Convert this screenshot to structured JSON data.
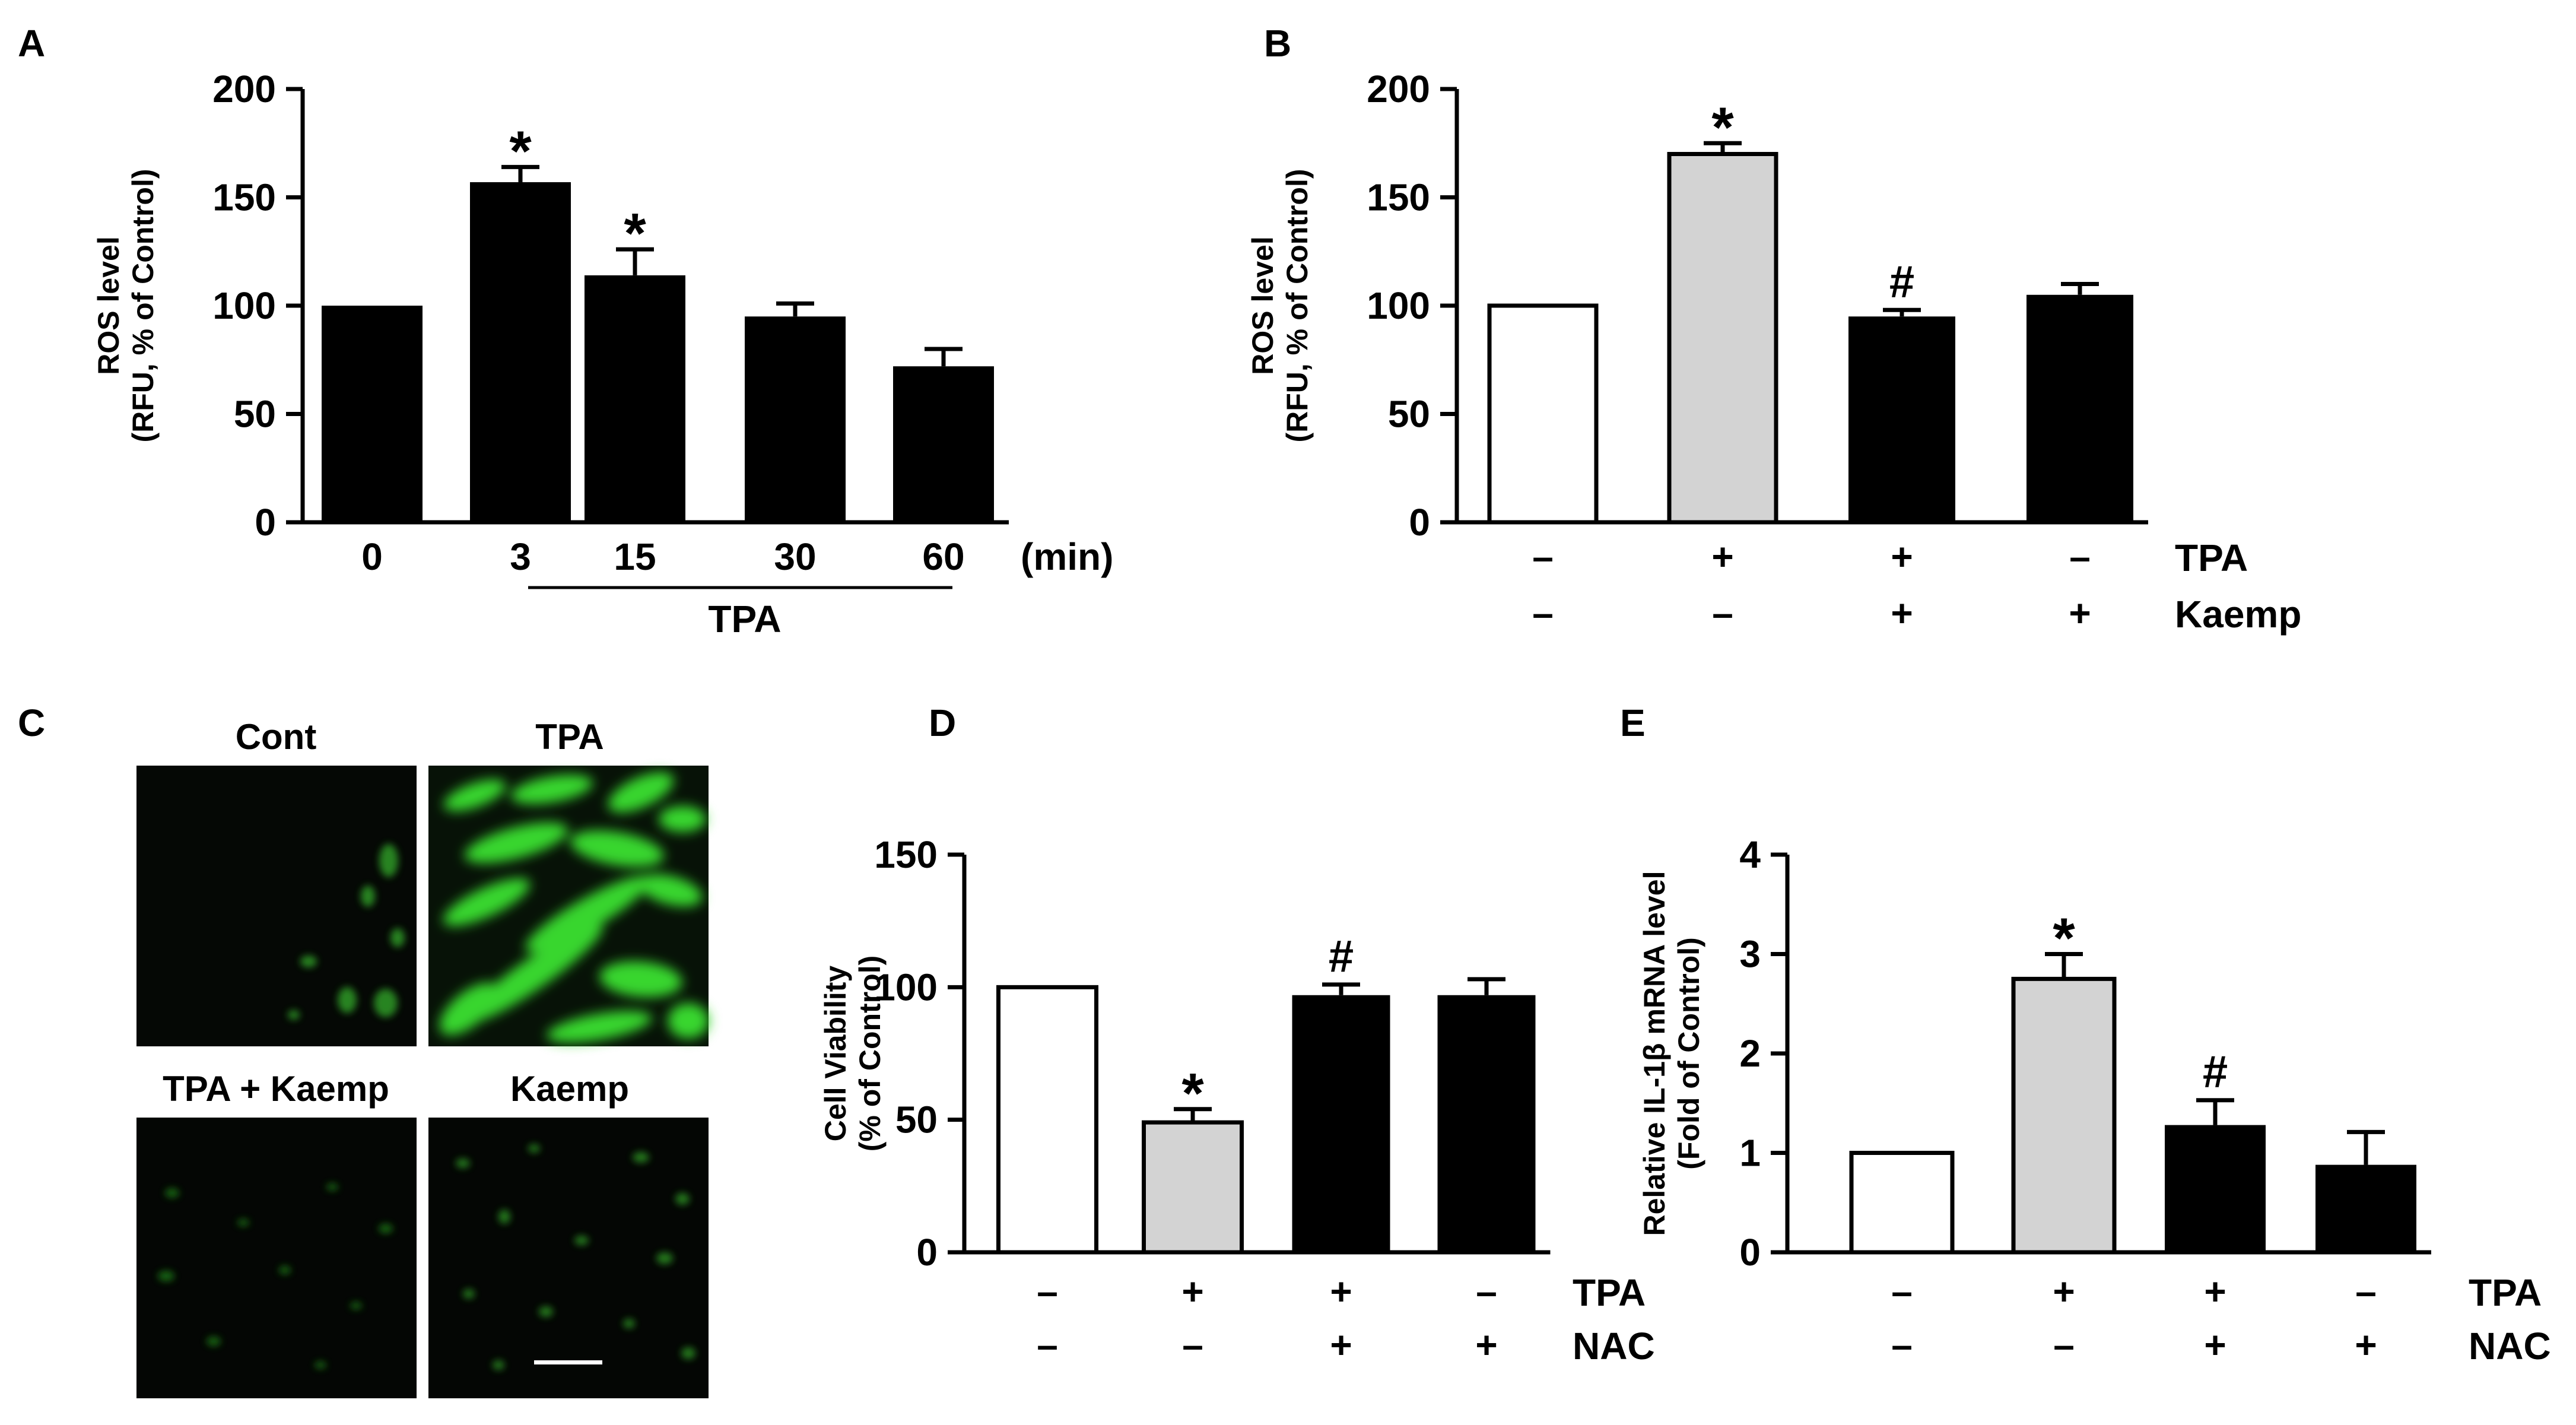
{
  "panels": {
    "A": {
      "letter": "A"
    },
    "B": {
      "letter": "B"
    },
    "C": {
      "letter": "C",
      "images": [
        {
          "label": "Cont",
          "intensity": "low"
        },
        {
          "label": "TPA",
          "intensity": "high"
        },
        {
          "label": "TPA + Kaemp",
          "intensity": "low"
        },
        {
          "label": "Kaemp",
          "intensity": "low"
        }
      ]
    },
    "D": {
      "letter": "D"
    },
    "E": {
      "letter": "E"
    }
  },
  "colors": {
    "black": "#000000",
    "gray": "#d3d3d3",
    "white": "#ffffff",
    "fluor": "#39d62e",
    "micro_bg": "#050805"
  },
  "chart_data": [
    {
      "panel": "A",
      "type": "bar",
      "ylabel": [
        "ROS level",
        "(RFU, % of Control)"
      ],
      "ylim": [
        0,
        200
      ],
      "yticks": [
        0,
        50,
        100,
        150,
        200
      ],
      "categories": [
        "0",
        "3",
        "15",
        "30",
        "60"
      ],
      "unit_label": "(min)",
      "group_label": "TPA",
      "values": [
        100,
        157,
        114,
        95,
        72
      ],
      "errors": [
        0,
        7,
        12,
        6,
        8
      ],
      "fills": [
        "black",
        "black",
        "black",
        "black",
        "black"
      ],
      "annotations": [
        "",
        "*",
        "*",
        "",
        ""
      ]
    },
    {
      "panel": "B",
      "type": "bar",
      "ylabel": [
        "ROS level",
        "(RFU, % of Control)"
      ],
      "ylim": [
        0,
        200
      ],
      "yticks": [
        0,
        50,
        100,
        150,
        200
      ],
      "values": [
        100,
        170,
        95,
        105
      ],
      "errors": [
        0,
        5,
        3,
        5
      ],
      "fills": [
        "white",
        "gray",
        "black",
        "black"
      ],
      "annotations": [
        "",
        "*",
        "#",
        ""
      ],
      "conditions": [
        {
          "name": "TPA",
          "signs": [
            "–",
            "+",
            "+",
            "–"
          ]
        },
        {
          "name": "Kaemp",
          "signs": [
            "–",
            "–",
            "+",
            "+"
          ]
        }
      ]
    },
    {
      "panel": "D",
      "type": "bar",
      "ylabel": [
        "Cell Viability",
        "(% of Control)"
      ],
      "ylim": [
        0,
        150
      ],
      "yticks": [
        0,
        50,
        100,
        150
      ],
      "values": [
        100,
        49,
        97,
        97
      ],
      "errors": [
        0,
        5,
        4,
        6
      ],
      "fills": [
        "white",
        "gray",
        "black",
        "black"
      ],
      "annotations": [
        "",
        "*",
        "#",
        ""
      ],
      "conditions": [
        {
          "name": "TPA",
          "signs": [
            "–",
            "+",
            "+",
            "–"
          ]
        },
        {
          "name": "NAC",
          "signs": [
            "–",
            "–",
            "+",
            "+"
          ]
        }
      ]
    },
    {
      "panel": "E",
      "type": "bar",
      "ylabel": [
        "Relative IL-1β mRNA level",
        "(Fold of Control)"
      ],
      "ylim": [
        0,
        4
      ],
      "yticks": [
        0,
        1,
        2,
        3,
        4
      ],
      "values": [
        1.0,
        2.75,
        1.28,
        0.88
      ],
      "errors": [
        0,
        0.25,
        0.25,
        0.33
      ],
      "fills": [
        "white",
        "gray",
        "black",
        "black"
      ],
      "annotations": [
        "",
        "*",
        "#",
        ""
      ],
      "conditions": [
        {
          "name": "TPA",
          "signs": [
            "–",
            "+",
            "+",
            "–"
          ]
        },
        {
          "name": "NAC",
          "signs": [
            "–",
            "–",
            "+",
            "+"
          ]
        }
      ]
    }
  ]
}
